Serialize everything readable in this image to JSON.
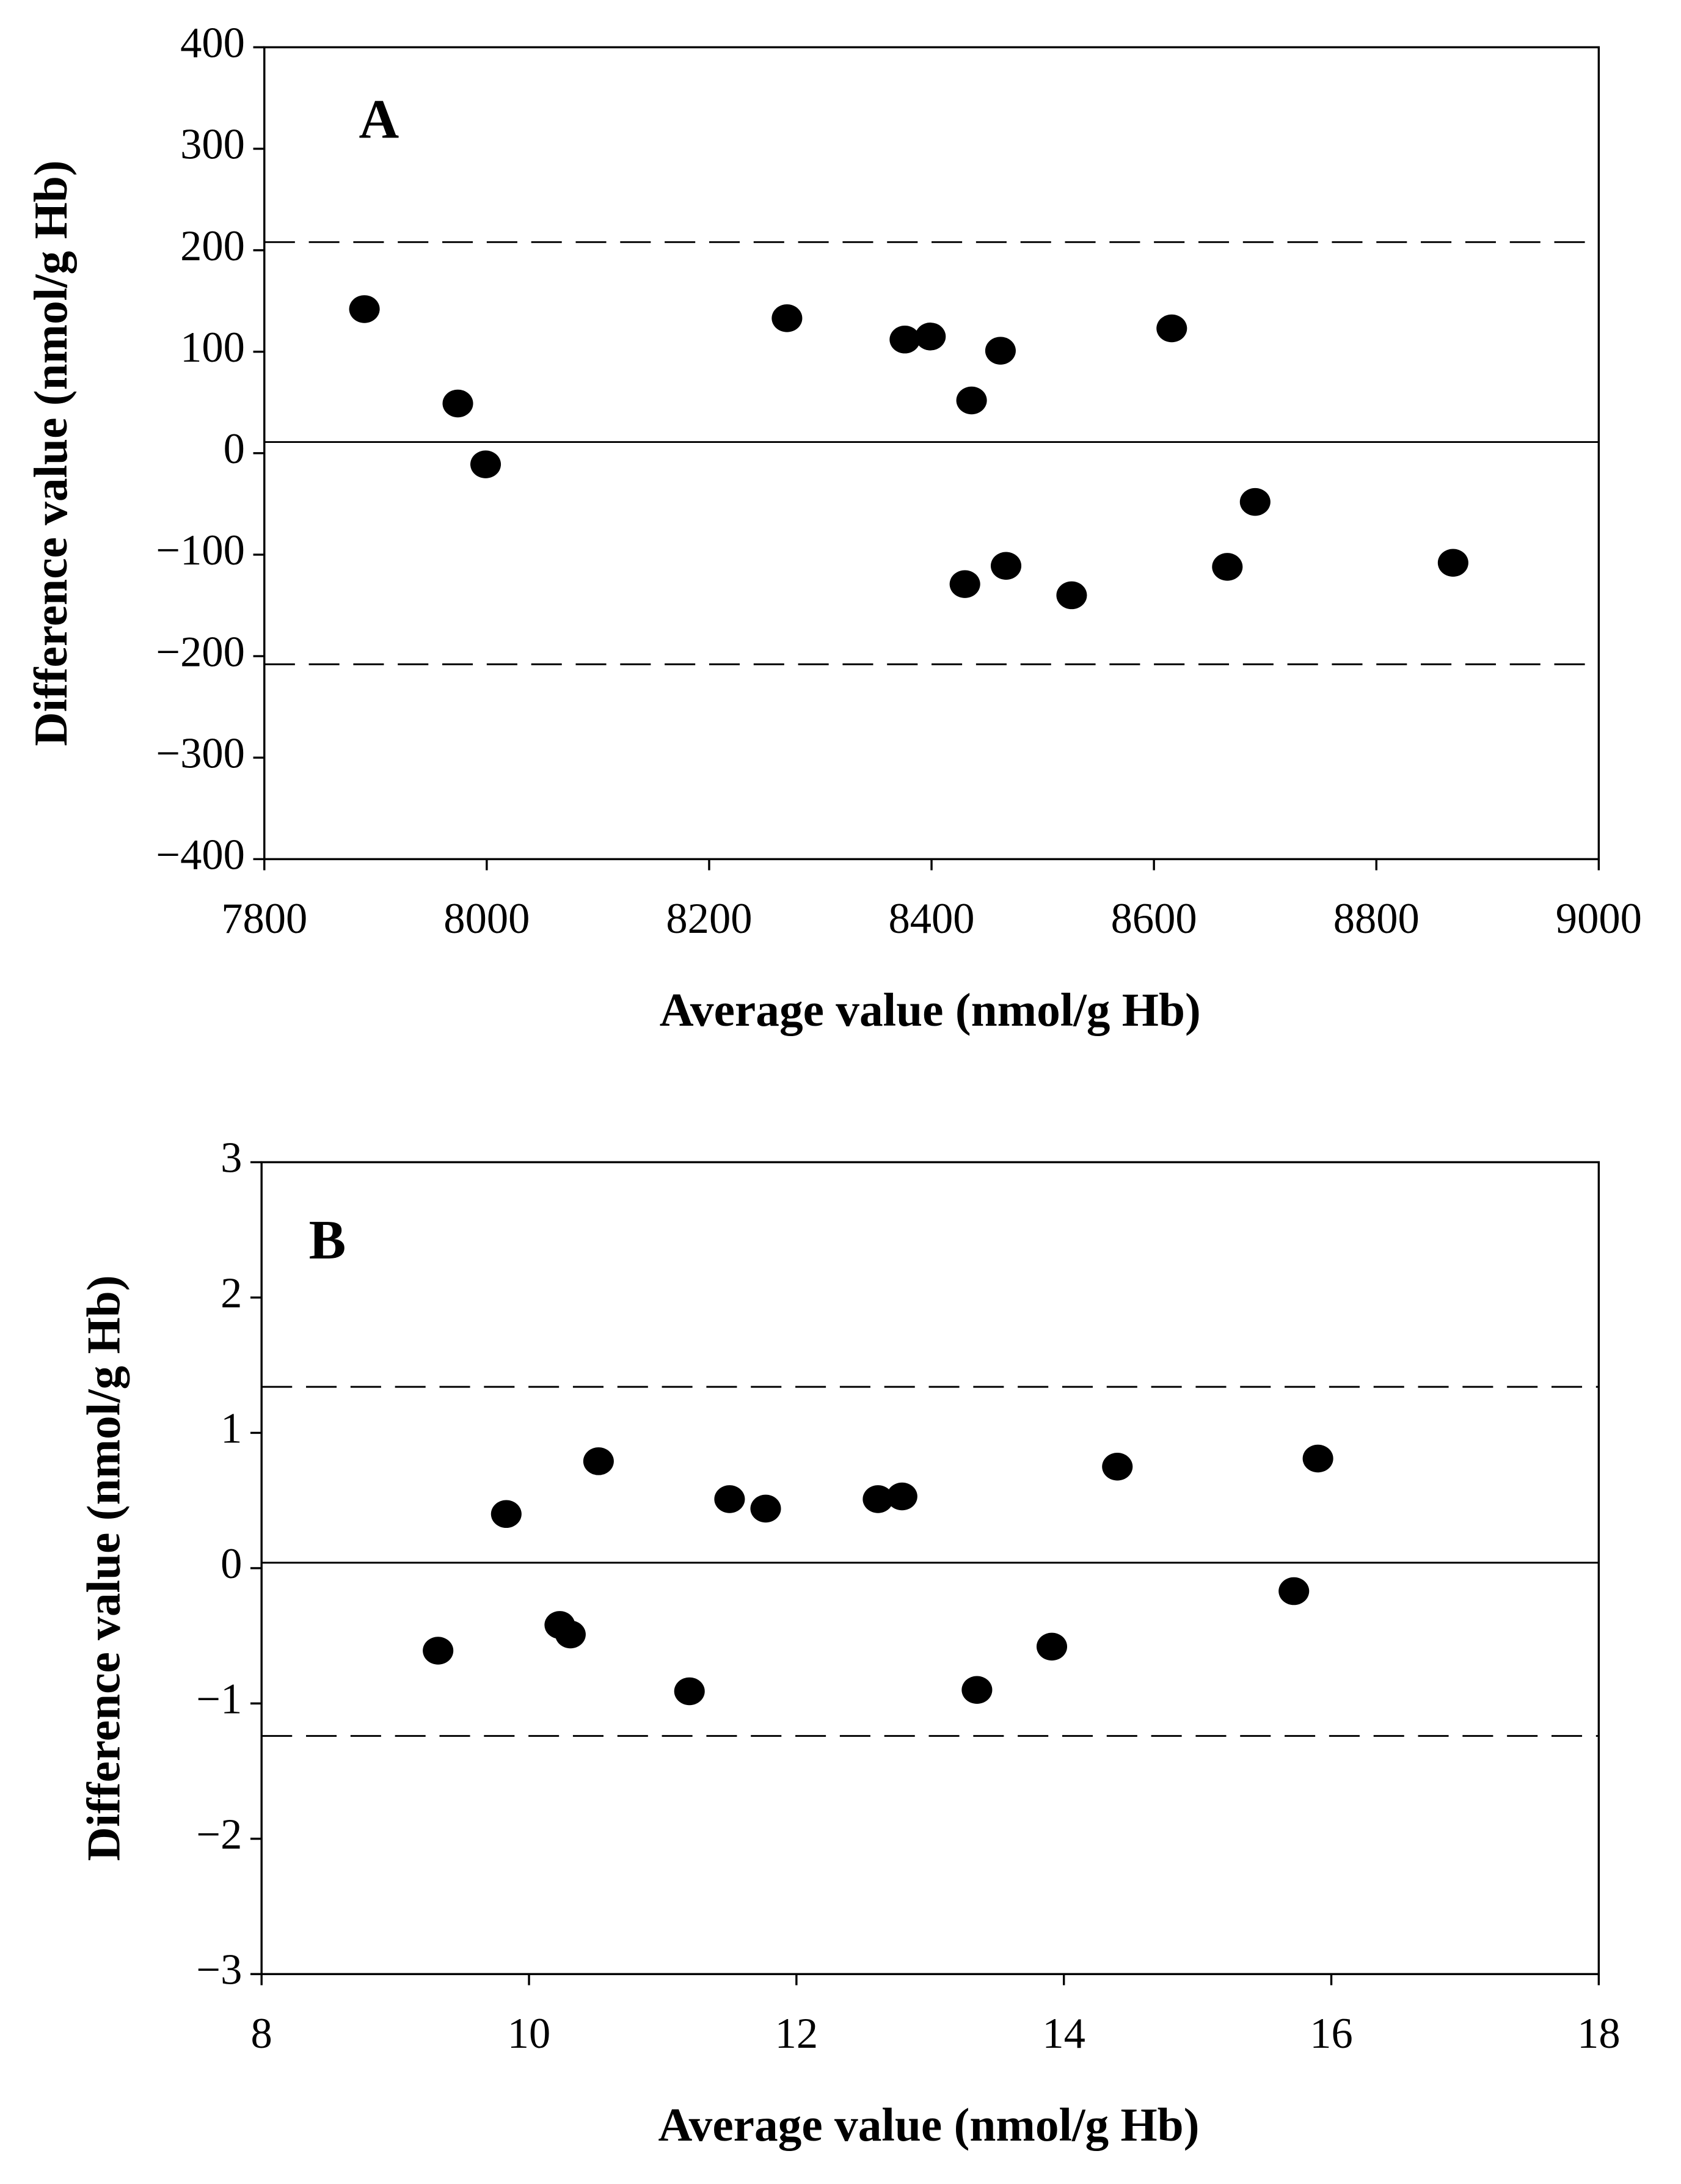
{
  "chart_data": [
    {
      "type": "scatter",
      "panel_label": "A",
      "x_label": "Average value (nmol/g Hb)",
      "y_label": "Difference value (nmol/g Hb)",
      "color": "#000000",
      "x": [
        7890,
        7974,
        7999,
        8270,
        8376,
        8399,
        8462,
        8436,
        8616,
        8430,
        8467,
        8526,
        8666,
        8691,
        8869
      ],
      "values": [
        142,
        49,
        -11,
        133,
        112,
        115,
        101,
        52,
        123,
        -129,
        -111,
        -140,
        -112,
        -48,
        -108
      ],
      "reference_lines": [
        {
          "value": 208,
          "style": "dashed"
        },
        {
          "value": 11,
          "style": "solid"
        },
        {
          "value": -208,
          "style": "dashed"
        }
      ],
      "xlim": [
        7800,
        9000
      ],
      "xticks": [
        7800,
        8000,
        8200,
        8400,
        8600,
        8800,
        9000
      ],
      "ylim": [
        -400,
        400
      ],
      "yticks": [
        {
          "value": -400,
          "label": "−400"
        },
        {
          "value": -300,
          "label": "−300"
        },
        {
          "value": -200,
          "label": "−200"
        },
        {
          "value": -100,
          "label": "−100"
        },
        0,
        100,
        200,
        300,
        400
      ]
    },
    {
      "type": "scatter",
      "panel_label": "B",
      "x_label": "Average value (nmol/g Hb)",
      "y_label": "Difference value (nmol/g Hb)",
      "color": "#000000",
      "x": [
        9.32,
        9.83,
        10.23,
        10.31,
        10.52,
        11.2,
        11.5,
        11.77,
        12.61,
        12.79,
        13.35,
        13.91,
        14.4,
        15.72,
        15.9
      ],
      "values": [
        -0.61,
        0.4,
        -0.42,
        -0.49,
        0.79,
        -0.91,
        0.51,
        0.44,
        0.51,
        0.53,
        -0.9,
        -0.58,
        0.75,
        -0.17,
        0.81
      ],
      "reference_lines": [
        {
          "value": 1.34,
          "style": "dashed"
        },
        {
          "value": 0.04,
          "style": "solid"
        },
        {
          "value": -1.24,
          "style": "dashed"
        }
      ],
      "xlim": [
        8,
        18
      ],
      "xticks": [
        8,
        10,
        12,
        14,
        16,
        18
      ],
      "ylim": [
        -3,
        3
      ],
      "yticks": [
        {
          "value": -3,
          "label": "−3"
        },
        {
          "value": -2,
          "label": "−2"
        },
        {
          "value": -1,
          "label": "−1"
        },
        0,
        1,
        2,
        3
      ]
    }
  ]
}
